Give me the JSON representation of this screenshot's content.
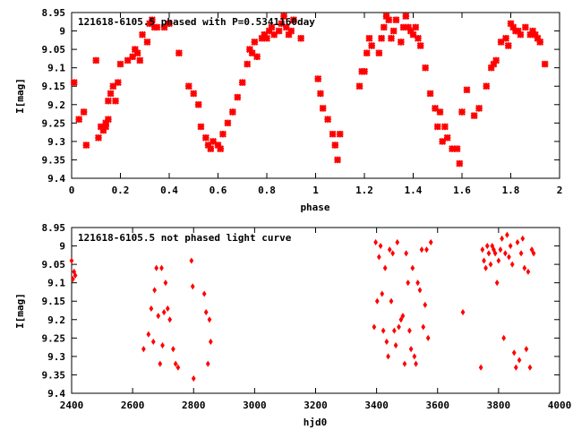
{
  "chart_data": [
    {
      "type": "scatter",
      "title": "121618-6105.5 phased with P=0.5341160day",
      "xlabel": "phase",
      "ylabel": "I[mag]",
      "xlim": [
        0,
        2
      ],
      "ylim": [
        9.4,
        8.95
      ],
      "y_inverted": true,
      "xticks": [
        "0",
        "0.2",
        "0.4",
        "0.6",
        "0.8",
        "1",
        "1.2",
        "1.4",
        "1.6",
        "1.8",
        "2"
      ],
      "yticks": [
        "8.95",
        "9",
        "9.05",
        "9.1",
        "9.15",
        "9.2",
        "9.25",
        "9.3",
        "9.35",
        "9.4"
      ],
      "grid": false,
      "marker_color": "#ff0000",
      "series": [
        {
          "x": [
            0.01,
            0.03,
            0.05,
            0.06,
            0.1,
            0.11,
            0.12,
            0.13,
            0.14,
            0.14,
            0.15,
            0.15,
            0.16,
            0.17,
            0.18,
            0.19,
            0.2,
            0.23,
            0.25,
            0.26,
            0.27,
            0.28,
            0.29,
            0.31,
            0.32,
            0.33,
            0.34,
            0.35,
            0.38,
            0.4,
            0.44,
            0.48,
            0.5,
            0.52,
            0.53,
            0.55,
            0.56,
            0.57,
            0.58,
            0.6,
            0.61,
            0.62,
            0.64,
            0.66,
            0.68,
            0.7,
            0.72,
            0.73,
            0.74,
            0.75,
            0.76,
            0.78,
            0.79,
            0.8,
            0.81,
            0.82,
            0.83,
            0.85,
            0.86,
            0.87,
            0.88,
            0.89,
            0.9,
            0.91,
            0.94,
            1.01,
            1.02,
            1.03,
            1.05,
            1.07,
            1.08,
            1.09,
            1.1,
            1.18,
            1.19,
            1.2,
            1.21,
            1.22,
            1.23,
            1.26,
            1.27,
            1.28,
            1.29,
            1.3,
            1.31,
            1.32,
            1.33,
            1.35,
            1.36,
            1.37,
            1.38,
            1.39,
            1.4,
            1.41,
            1.42,
            1.43,
            1.45,
            1.47,
            1.49,
            1.5,
            1.51,
            1.52,
            1.53,
            1.54,
            1.56,
            1.58,
            1.59,
            1.6,
            1.62,
            1.65,
            1.67,
            1.7,
            1.72,
            1.73,
            1.74,
            1.76,
            1.78,
            1.79,
            1.8,
            1.81,
            1.82,
            1.83,
            1.84,
            1.86,
            1.88,
            1.89,
            1.9,
            1.91,
            1.92,
            1.94
          ],
          "y": [
            9.14,
            9.24,
            9.22,
            9.31,
            9.08,
            9.29,
            9.26,
            9.27,
            9.25,
            9.26,
            9.19,
            9.24,
            9.17,
            9.15,
            9.19,
            9.14,
            9.09,
            9.08,
            9.07,
            9.05,
            9.06,
            9.08,
            9.01,
            9.03,
            8.98,
            8.97,
            8.99,
            8.99,
            8.99,
            8.98,
            9.06,
            9.15,
            9.17,
            9.2,
            9.26,
            9.29,
            9.31,
            9.32,
            9.3,
            9.31,
            9.32,
            9.28,
            9.25,
            9.22,
            9.18,
            9.14,
            9.09,
            9.05,
            9.06,
            9.03,
            9.07,
            9.02,
            9.01,
            9.02,
            9.0,
            8.99,
            9.01,
            9.0,
            8.98,
            8.96,
            8.99,
            9.01,
            9.0,
            8.97,
            9.02,
            9.13,
            9.17,
            9.21,
            9.24,
            9.28,
            9.31,
            9.35,
            9.28,
            9.15,
            9.11,
            9.11,
            9.06,
            9.02,
            9.04,
            9.06,
            9.02,
            8.99,
            8.96,
            8.97,
            9.02,
            9.0,
            8.97,
            9.03,
            8.99,
            8.96,
            8.99,
            9.0,
            9.01,
            8.99,
            9.02,
            9.04,
            9.1,
            9.17,
            9.21,
            9.26,
            9.22,
            9.3,
            9.26,
            9.29,
            9.32,
            9.32,
            9.36,
            9.22,
            9.16,
            9.23,
            9.21,
            9.15,
            9.1,
            9.09,
            9.08,
            9.03,
            9.02,
            9.04,
            8.98,
            8.99,
            9.0,
            9.0,
            9.01,
            8.99,
            9.01,
            9.0,
            9.01,
            9.02,
            9.03,
            9.09
          ]
        }
      ]
    },
    {
      "type": "scatter",
      "title": "121618-6105.5 not phased light curve",
      "xlabel": "hjd0",
      "ylabel": "I[mag]",
      "xlim": [
        2400,
        4000
      ],
      "ylim": [
        9.4,
        8.95
      ],
      "y_inverted": true,
      "xticks": [
        "2400",
        "2600",
        "2800",
        "3000",
        "3200",
        "3400",
        "3600",
        "3800",
        "4000"
      ],
      "yticks": [
        "8.95",
        "9",
        "9.05",
        "9.1",
        "9.15",
        "9.2",
        "9.25",
        "9.3",
        "9.35",
        "9.4"
      ],
      "grid": false,
      "marker_color": "#ff0000",
      "series": [
        {
          "x": [
            2400,
            2404,
            2408,
            2412,
            2636,
            2652,
            2661,
            2668,
            2672,
            2678,
            2684,
            2690,
            2695,
            2698,
            2703,
            2708,
            2715,
            2722,
            2733,
            2741,
            2749,
            2793,
            2797,
            2800,
            2835,
            2841,
            2847,
            2852,
            2856,
            3392,
            3397,
            3402,
            3408,
            3413,
            3418,
            3422,
            3428,
            3433,
            3438,
            3443,
            3448,
            3453,
            3458,
            3463,
            3468,
            3473,
            3480,
            3486,
            3492,
            3497,
            3503,
            3508,
            3513,
            3518,
            3524,
            3529,
            3535,
            3542,
            3548,
            3553,
            3559,
            3564,
            3569,
            3578,
            3683,
            3742,
            3747,
            3752,
            3758,
            3763,
            3768,
            3774,
            3779,
            3784,
            3789,
            3795,
            3800,
            3806,
            3811,
            3817,
            3822,
            3828,
            3834,
            3839,
            3845,
            3851,
            3857,
            3862,
            3868,
            3874,
            3879,
            3885,
            3891,
            3897,
            3903,
            3909,
            3915
          ],
          "y": [
            9.04,
            9.09,
            9.07,
            9.08,
            9.28,
            9.24,
            9.17,
            9.26,
            9.12,
            9.06,
            9.19,
            9.32,
            9.06,
            9.27,
            9.18,
            9.1,
            9.17,
            9.2,
            9.28,
            9.32,
            9.33,
            9.04,
            9.11,
            9.36,
            9.13,
            9.18,
            9.32,
            9.2,
            9.26,
            9.22,
            8.99,
            9.15,
            9.03,
            9.0,
            9.13,
            9.23,
            9.06,
            9.26,
            9.3,
            9.01,
            9.15,
            9.02,
            9.23,
            9.27,
            8.99,
            9.22,
            9.2,
            9.19,
            9.32,
            9.02,
            9.1,
            9.23,
            9.28,
            9.06,
            9.3,
            9.32,
            9.1,
            9.12,
            9.01,
            9.22,
            9.16,
            9.01,
            9.25,
            8.99,
            9.18,
            9.33,
            9.01,
            9.04,
            9.06,
            9.0,
            9.02,
            9.05,
            9.0,
            9.01,
            9.02,
            9.1,
            9.04,
            9.01,
            8.98,
            9.25,
            9.02,
            8.97,
            9.03,
            9.0,
            9.05,
            9.29,
            9.33,
            8.99,
            9.31,
            9.02,
            8.98,
            9.06,
            9.28,
            9.07,
            9.33,
            9.01,
            9.02
          ]
        }
      ]
    }
  ]
}
